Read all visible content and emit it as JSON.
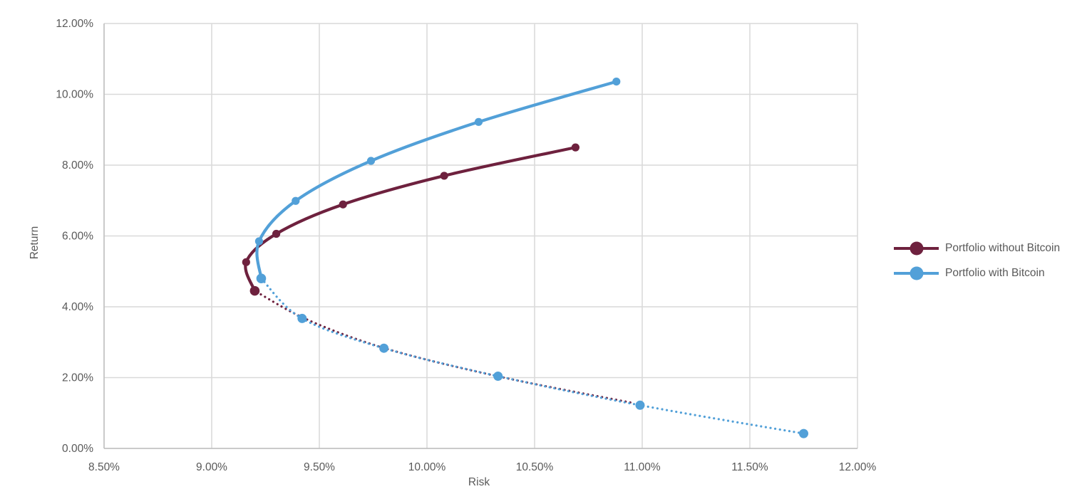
{
  "page": {
    "background": "#ffffff"
  },
  "chart_data": {
    "type": "line",
    "title": "",
    "xlabel": "Risk",
    "ylabel": "Return",
    "units": "percent",
    "grid": true,
    "legend_position": "right",
    "x_axis": {
      "min": 8.5,
      "max": 12.0,
      "tick_step": 0.5,
      "tick_labels": [
        "8.50%",
        "9.00%",
        "9.50%",
        "10.00%",
        "10.50%",
        "11.00%",
        "11.50%",
        "12.00%"
      ]
    },
    "y_axis": {
      "min": 0,
      "max": 12,
      "tick_step": 2,
      "tick_labels": [
        "0.00%",
        "2.00%",
        "4.00%",
        "6.00%",
        "8.00%",
        "10.00%",
        "12.00%"
      ]
    },
    "colors": {
      "gridline": "#D9D9D9",
      "axis_line": "#BFBFBF",
      "label_text": "#595959"
    },
    "series": [
      {
        "name": "Portfolio without Bitcoin",
        "color": "#6E213E",
        "solid_points": [
          {
            "risk": 10.69,
            "return": 8.5
          },
          {
            "risk": 10.08,
            "return": 7.7
          },
          {
            "risk": 9.61,
            "return": 6.89
          },
          {
            "risk": 9.3,
            "return": 6.06
          },
          {
            "risk": 9.16,
            "return": 5.26
          },
          {
            "risk": 9.2,
            "return": 4.45
          }
        ],
        "dotted_points": [
          {
            "risk": 9.2,
            "return": 4.45
          },
          {
            "risk": 9.45,
            "return": 3.62
          },
          {
            "risk": 9.82,
            "return": 2.8
          },
          {
            "risk": 10.35,
            "return": 2.01
          },
          {
            "risk": 10.96,
            "return": 1.28
          }
        ],
        "dotted_has_markers": false
      },
      {
        "name": "Portfolio with Bitcoin",
        "color": "#52A0D8",
        "solid_points": [
          {
            "risk": 10.88,
            "return": 10.36
          },
          {
            "risk": 10.24,
            "return": 9.22
          },
          {
            "risk": 9.74,
            "return": 8.12
          },
          {
            "risk": 9.39,
            "return": 6.99
          },
          {
            "risk": 9.22,
            "return": 5.85
          },
          {
            "risk": 9.23,
            "return": 4.8
          }
        ],
        "dotted_points": [
          {
            "risk": 9.23,
            "return": 4.8
          },
          {
            "risk": 9.42,
            "return": 3.67
          },
          {
            "risk": 9.8,
            "return": 2.83
          },
          {
            "risk": 10.33,
            "return": 2.04
          },
          {
            "risk": 10.99,
            "return": 1.22
          },
          {
            "risk": 11.75,
            "return": 0.42
          }
        ],
        "dotted_has_markers": true
      }
    ]
  }
}
